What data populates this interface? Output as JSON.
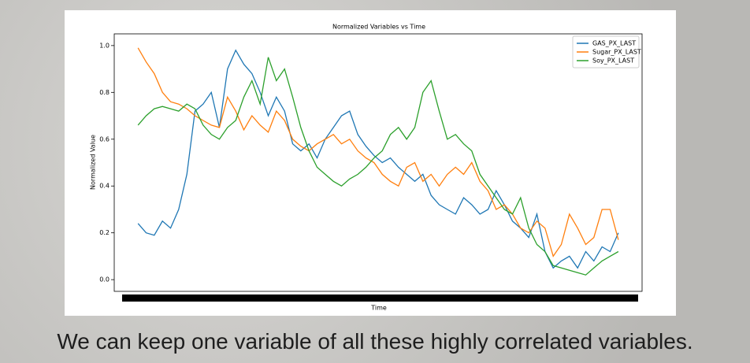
{
  "chart_data": {
    "type": "line",
    "title": "Normalized Variables vs Time",
    "xlabel": "Time",
    "ylabel": "Normalized Value",
    "categories": [
      null,
      null,
      null,
      null,
      null,
      null,
      null,
      null,
      null,
      null,
      null,
      null,
      null,
      null,
      null,
      null,
      null,
      null,
      null,
      null,
      null,
      null,
      null,
      null,
      null,
      null,
      null,
      null,
      null,
      null,
      null,
      null,
      null,
      null,
      null,
      null,
      null,
      null,
      null,
      null,
      null,
      null,
      null,
      null,
      null,
      null,
      null,
      null,
      null,
      null,
      null,
      null,
      null,
      null,
      null,
      null,
      null,
      null,
      null,
      null
    ],
    "series": [
      {
        "name": "GAS_PX_LAST",
        "color": "#1f77b4",
        "values": [
          0.24,
          0.2,
          0.19,
          0.25,
          0.22,
          0.3,
          0.45,
          0.72,
          0.75,
          0.8,
          0.65,
          0.9,
          0.98,
          0.92,
          0.88,
          0.8,
          0.7,
          0.78,
          0.72,
          0.58,
          0.55,
          0.58,
          0.52,
          0.6,
          0.65,
          0.7,
          0.72,
          0.62,
          0.57,
          0.53,
          0.5,
          0.52,
          0.48,
          0.45,
          0.42,
          0.45,
          0.36,
          0.32,
          0.3,
          0.28,
          0.35,
          0.32,
          0.28,
          0.3,
          0.38,
          0.32,
          0.25,
          0.22,
          0.18,
          0.28,
          0.12,
          0.05,
          0.08,
          0.1,
          0.05,
          0.12,
          0.08,
          0.14,
          0.12,
          0.2
        ]
      },
      {
        "name": "Sugar_PX_LAST",
        "color": "#ff7f0e",
        "values": [
          0.99,
          0.93,
          0.88,
          0.8,
          0.76,
          0.75,
          0.73,
          0.7,
          0.68,
          0.66,
          0.65,
          0.78,
          0.72,
          0.64,
          0.7,
          0.66,
          0.63,
          0.72,
          0.68,
          0.6,
          0.57,
          0.55,
          0.58,
          0.6,
          0.62,
          0.58,
          0.6,
          0.55,
          0.52,
          0.5,
          0.45,
          0.42,
          0.4,
          0.48,
          0.5,
          0.42,
          0.45,
          0.4,
          0.45,
          0.48,
          0.45,
          0.5,
          0.42,
          0.38,
          0.3,
          0.32,
          0.28,
          0.22,
          0.2,
          0.25,
          0.22,
          0.1,
          0.15,
          0.28,
          0.22,
          0.15,
          0.18,
          0.3,
          0.3,
          0.17
        ]
      },
      {
        "name": "Soy_PX_LAST",
        "color": "#2ca02c",
        "values": [
          0.66,
          0.7,
          0.73,
          0.74,
          0.73,
          0.72,
          0.75,
          0.73,
          0.66,
          0.62,
          0.6,
          0.65,
          0.68,
          0.78,
          0.85,
          0.75,
          0.95,
          0.85,
          0.9,
          0.78,
          0.65,
          0.55,
          0.48,
          0.45,
          0.42,
          0.4,
          0.43,
          0.45,
          0.48,
          0.52,
          0.55,
          0.62,
          0.65,
          0.6,
          0.65,
          0.8,
          0.85,
          0.72,
          0.6,
          0.62,
          0.58,
          0.55,
          0.45,
          0.4,
          0.35,
          0.3,
          0.28,
          0.35,
          0.22,
          0.15,
          0.12,
          0.06,
          0.05,
          0.04,
          0.03,
          0.02,
          0.05,
          0.08,
          0.1,
          0.12
        ]
      }
    ],
    "ylim": [
      -0.05,
      1.05
    ],
    "yticks": [
      {
        "value": 0,
        "label": "0.0"
      },
      0.2,
      0.4,
      0.6,
      0.8,
      {
        "value": 1,
        "label": "1.0"
      }
    ],
    "legend": "upper right"
  },
  "caption": "We can keep one variable of all these highly correlated variables."
}
